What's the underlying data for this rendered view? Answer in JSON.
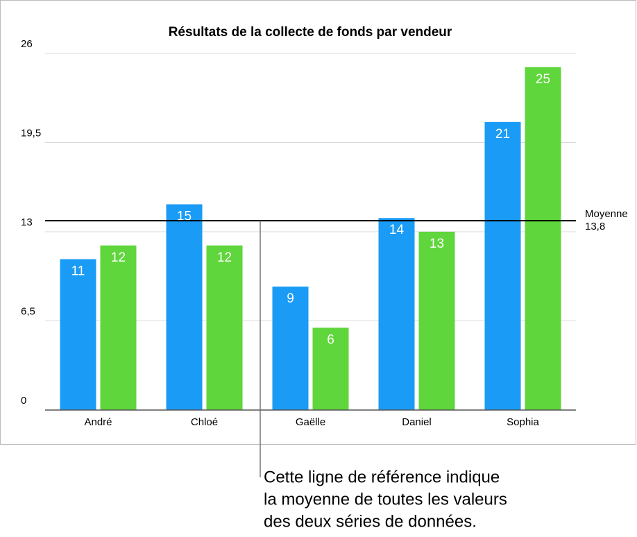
{
  "chart_data": {
    "type": "bar",
    "title": "Résultats de la collecte de fonds par vendeur",
    "categories": [
      "André",
      "Chloé",
      "Gaëlle",
      "Daniel",
      "Sophia"
    ],
    "series": [
      {
        "color": "#1a9bf5",
        "values": [
          11,
          15,
          9,
          14,
          21
        ]
      },
      {
        "color": "#5fd63b",
        "values": [
          12,
          12,
          6,
          13,
          25
        ]
      }
    ],
    "ylim": [
      0,
      26
    ],
    "yticks": [
      0,
      {
        "value": 6.5,
        "label": "6,5"
      },
      13,
      {
        "value": 19.5,
        "label": "19,5"
      },
      26
    ],
    "grid": true,
    "reference_line": {
      "value": 13.8,
      "label": "Moyenne",
      "value_label": "13,8"
    },
    "annotation": [
      "Cette ligne de référence indique",
      "la moyenne de toutes les valeurs",
      "des deux séries de données."
    ]
  }
}
